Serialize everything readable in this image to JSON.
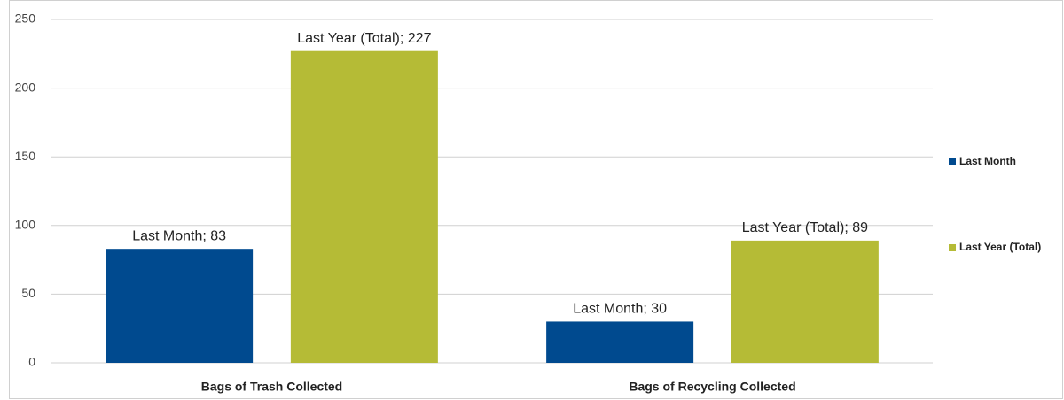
{
  "chart_data": {
    "type": "bar",
    "categories": [
      "Bags of Trash Collected",
      "Bags of Recycling Collected"
    ],
    "series": [
      {
        "name": "Last Month",
        "color": "#004a8f",
        "values": [
          83,
          30
        ],
        "value_labels": [
          "Last Month; 83",
          "Last Month; 30"
        ]
      },
      {
        "name": "Last Year (Total)",
        "color": "#b5bb36",
        "values": [
          227,
          89
        ],
        "value_labels": [
          "Last Year (Total); 227",
          "Last Year (Total); 89"
        ]
      }
    ],
    "ylim": [
      0,
      250
    ],
    "yticks": [
      0,
      50,
      100,
      150,
      200,
      250
    ],
    "grid": true,
    "legend": "right"
  }
}
